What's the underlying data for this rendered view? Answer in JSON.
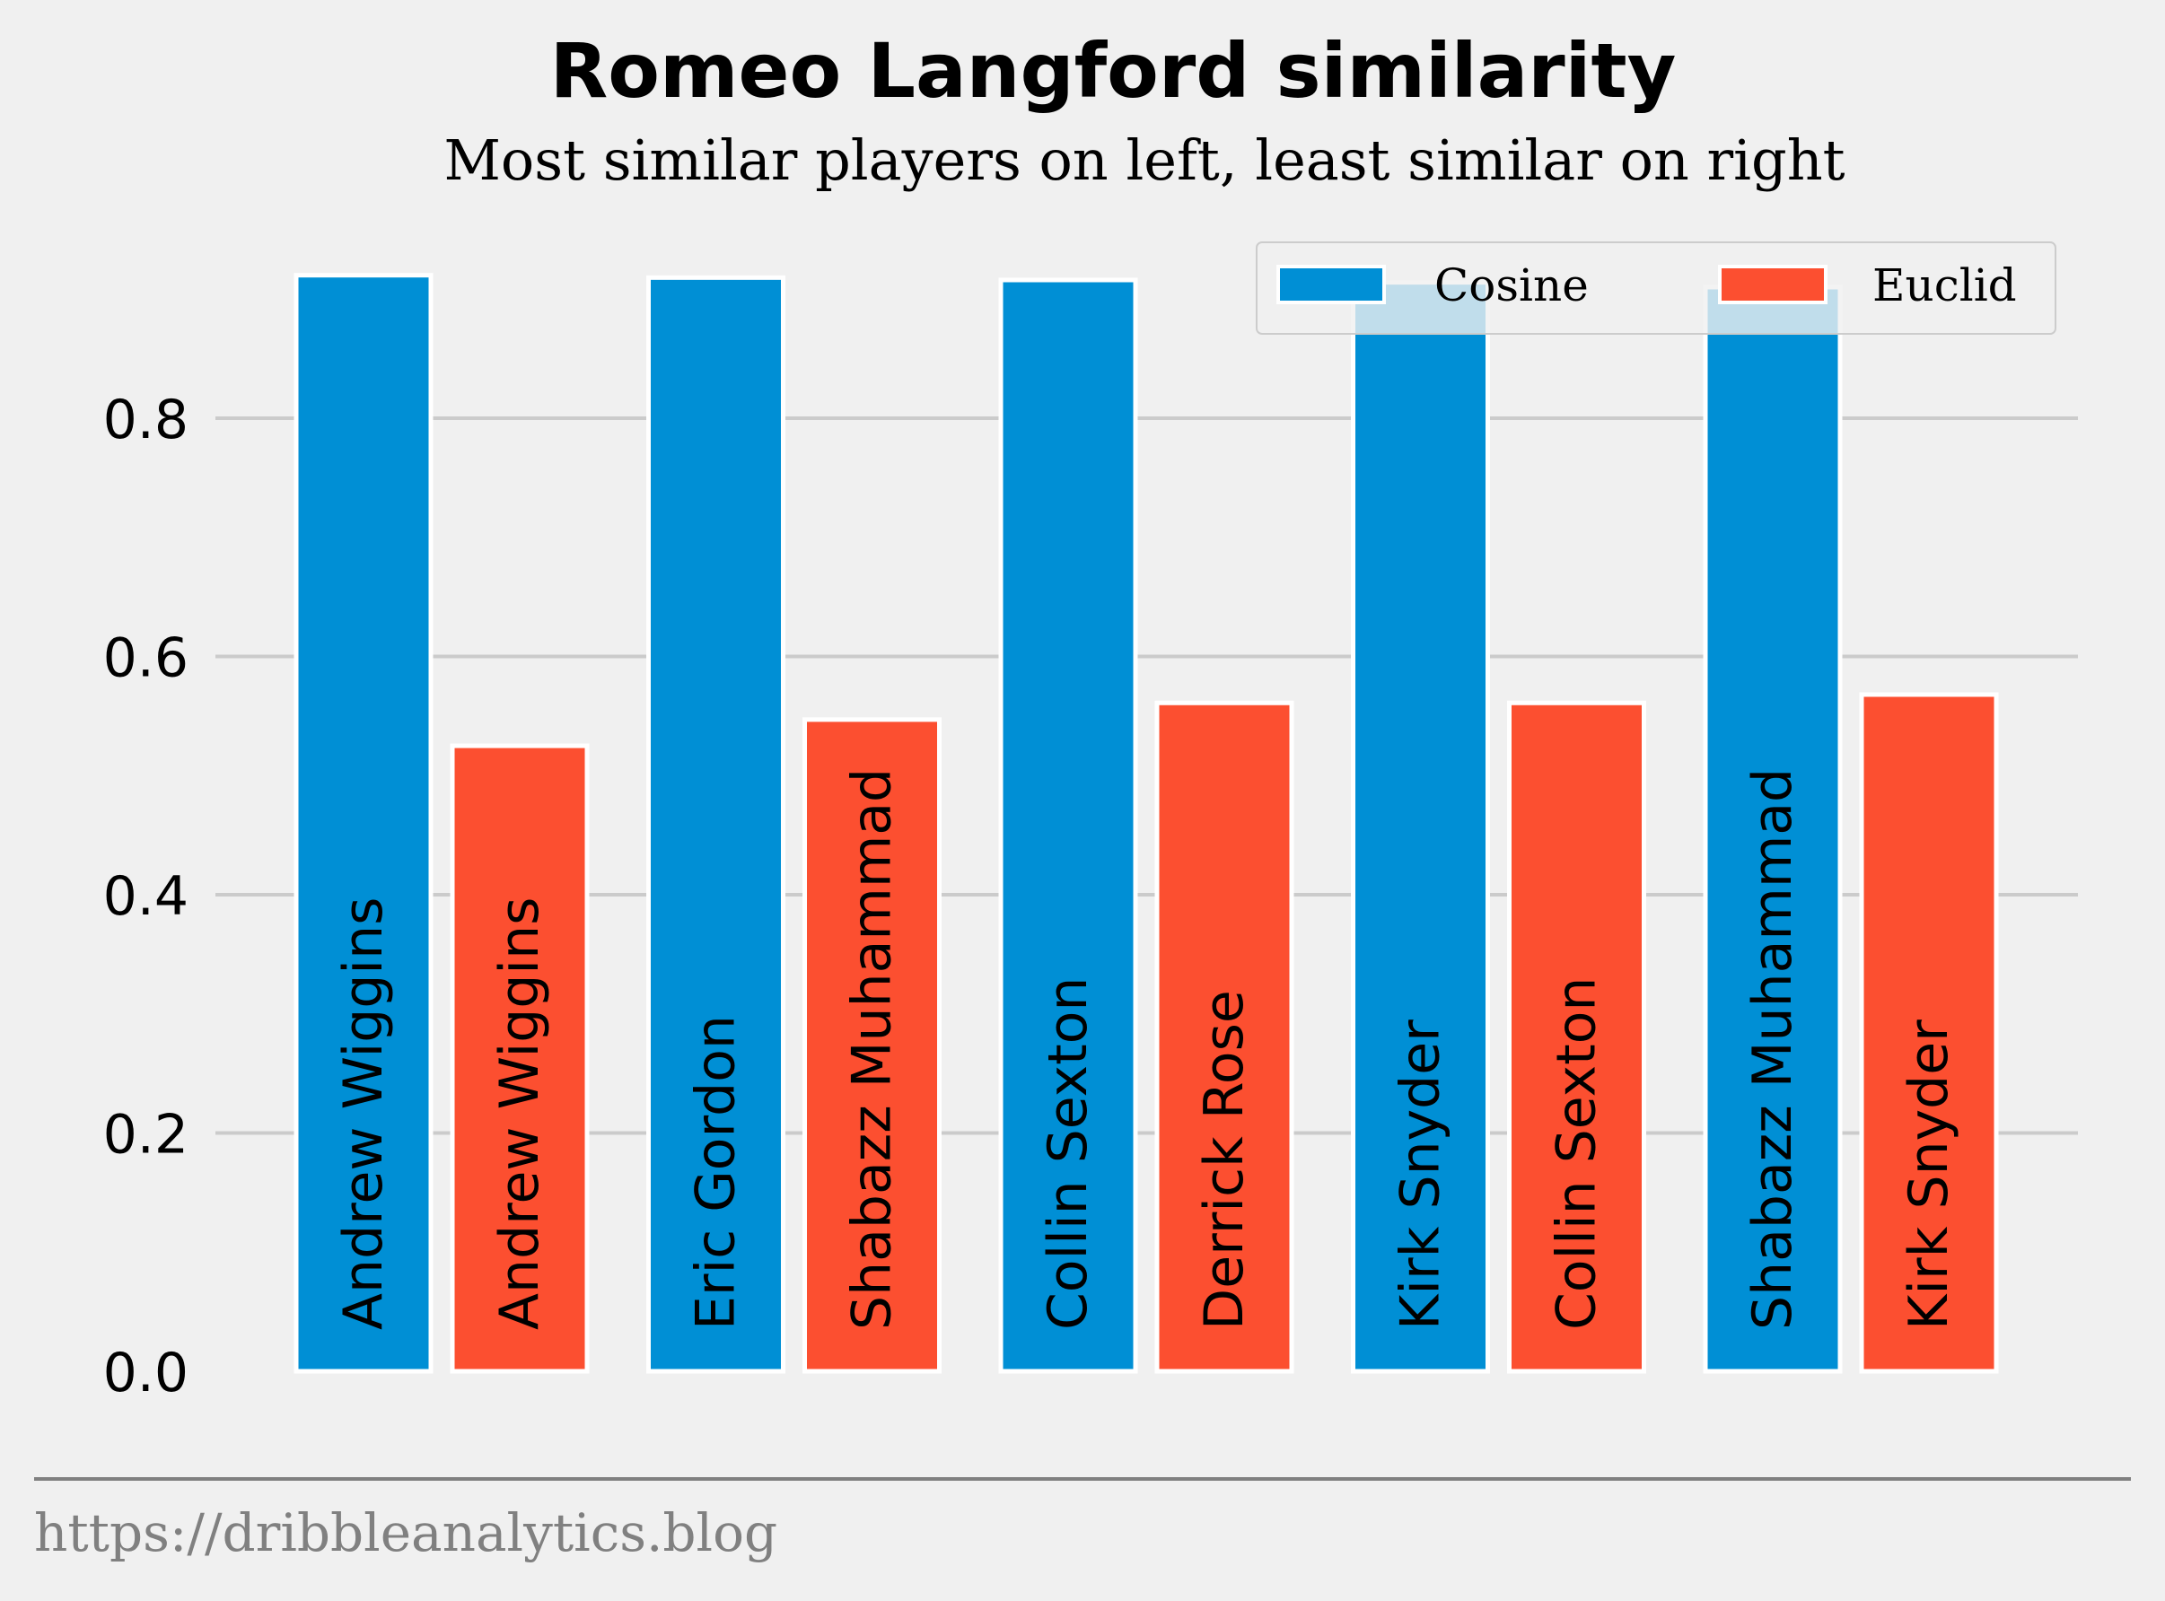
{
  "chart_data": {
    "type": "bar",
    "title": "Romeo Langford similarity",
    "subtitle": "Most similar players on left, least similar on right",
    "xlabel": "",
    "ylabel": "",
    "ylim": [
      0,
      0.92
    ],
    "yticks": [
      "0.0",
      "0.2",
      "0.4",
      "0.6",
      "0.8"
    ],
    "grid": "horizontal",
    "legend_position": "top-right",
    "series": [
      {
        "name": "Cosine",
        "color": "#008fd5",
        "values": [
          0.92,
          0.918,
          0.916,
          0.914,
          0.91
        ],
        "labels": [
          "Andrew Wiggins",
          "Eric Gordon",
          "Collin Sexton",
          "Kirk Snyder",
          "Shabazz Muhammad"
        ]
      },
      {
        "name": "Euclid",
        "color": "#fc4f30",
        "values": [
          0.525,
          0.547,
          0.561,
          0.561,
          0.568
        ],
        "labels": [
          "Andrew Wiggins",
          "Shabazz Muhammad",
          "Derrick Rose",
          "Collin Sexton",
          "Kirk Snyder"
        ]
      }
    ]
  },
  "footer": {
    "source": "https://dribbleanalytics.blog"
  }
}
